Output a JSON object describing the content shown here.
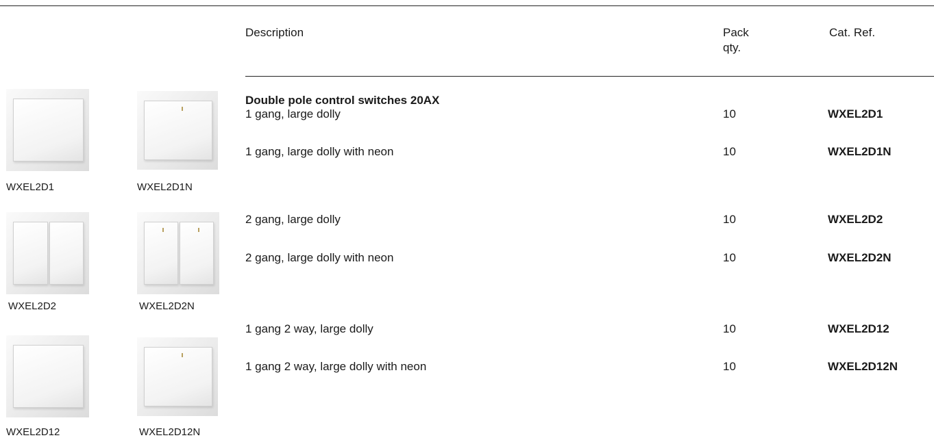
{
  "header": {
    "description": "Description",
    "pack_qty": "Pack qty.",
    "cat_ref": "Cat. Ref."
  },
  "section": {
    "title": "Double pole control switches 20AX",
    "rows": [
      {
        "description": "1 gang, large dolly",
        "pack_qty": 10,
        "cat_ref": "WXEL2D1"
      },
      {
        "description": "1 gang, large dolly with neon",
        "pack_qty": 10,
        "cat_ref": "WXEL2D1N"
      },
      {
        "description": "2 gang, large dolly",
        "pack_qty": 10,
        "cat_ref": "WXEL2D2"
      },
      {
        "description": "2 gang, large dolly with neon",
        "pack_qty": 10,
        "cat_ref": "WXEL2D2N"
      },
      {
        "description": "1 gang 2 way, large dolly",
        "pack_qty": 10,
        "cat_ref": "WXEL2D12"
      },
      {
        "description": "1 gang 2 way, large dolly with neon",
        "pack_qty": 10,
        "cat_ref": "WXEL2D12N"
      }
    ]
  },
  "images": [
    {
      "caption": "WXEL2D1"
    },
    {
      "caption": "WXEL2D1N"
    },
    {
      "caption": "WXEL2D2"
    },
    {
      "caption": "WXEL2D2N"
    },
    {
      "caption": "WXEL2D12"
    },
    {
      "caption": "WXEL2D12N"
    }
  ]
}
